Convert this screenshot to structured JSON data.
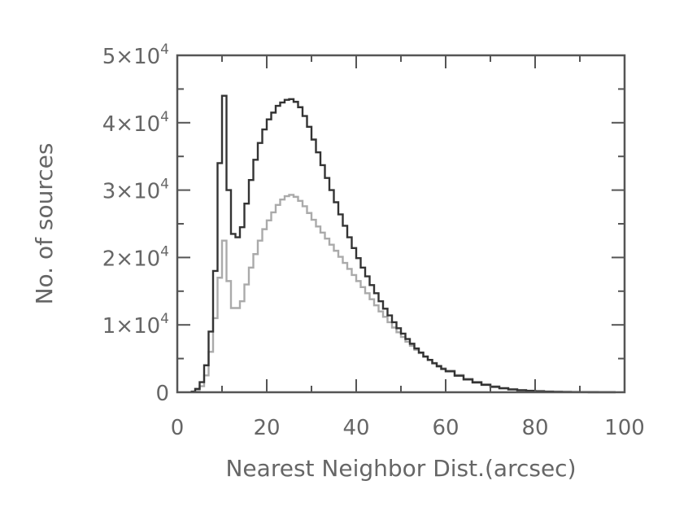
{
  "chart_data": {
    "type": "line",
    "title": "",
    "xlabel": "Nearest Neighbor Dist.(arcsec)",
    "ylabel": "No. of sources",
    "xlim": [
      0,
      100
    ],
    "ylim": [
      0,
      50000
    ],
    "grid": false,
    "x_ticks": [
      {
        "value": 0,
        "label": "0"
      },
      {
        "value": 20,
        "label": "20"
      },
      {
        "value": 40,
        "label": "40"
      },
      {
        "value": 60,
        "label": "60"
      },
      {
        "value": 80,
        "label": "80"
      },
      {
        "value": 100,
        "label": "100"
      }
    ],
    "y_ticks": [
      {
        "value": 0,
        "label": "0",
        "mantissa": "0",
        "exponent": ""
      },
      {
        "value": 10000,
        "label": "1×10⁴",
        "mantissa": "1×10",
        "exponent": "4"
      },
      {
        "value": 20000,
        "label": "2×10⁴",
        "mantissa": "2×10",
        "exponent": "4"
      },
      {
        "value": 30000,
        "label": "3×10⁴",
        "mantissa": "3×10",
        "exponent": "4"
      },
      {
        "value": 40000,
        "label": "4×10⁴",
        "mantissa": "4×10",
        "exponent": "4"
      },
      {
        "value": 50000,
        "label": "5×10⁴",
        "mantissa": "5×10",
        "exponent": "4"
      }
    ],
    "series": [
      {
        "color": "#333333",
        "step": "histogram",
        "x": [
          3,
          4,
          5,
          6,
          7,
          8,
          9,
          10,
          11,
          12,
          13,
          14,
          15,
          16,
          17,
          18,
          19,
          20,
          21,
          22,
          23,
          24,
          25,
          26,
          27,
          28,
          29,
          30,
          31,
          32,
          33,
          34,
          35,
          36,
          37,
          38,
          39,
          40,
          41,
          42,
          43,
          44,
          45,
          46,
          47,
          48,
          49,
          50,
          51,
          52,
          53,
          54,
          55,
          56,
          57,
          58,
          59,
          60,
          62,
          64,
          66,
          68,
          70,
          72,
          74,
          76,
          78,
          80,
          82,
          84,
          86,
          88,
          90,
          92,
          94,
          96
        ],
        "values": [
          100,
          500,
          1500,
          4000,
          9000,
          18000,
          34000,
          44000,
          30000,
          23500,
          23000,
          24500,
          28000,
          31500,
          34500,
          37000,
          39000,
          40500,
          41500,
          42500,
          43000,
          43400,
          43500,
          43100,
          42300,
          41000,
          39400,
          37500,
          35600,
          33700,
          31800,
          30000,
          28200,
          26400,
          24700,
          23000,
          21400,
          19900,
          18500,
          17200,
          15900,
          14700,
          13500,
          12400,
          11400,
          10400,
          9500,
          8700,
          7900,
          7200,
          6500,
          5900,
          5300,
          4800,
          4300,
          3850,
          3450,
          3100,
          2450,
          1900,
          1450,
          1100,
          800,
          580,
          420,
          300,
          210,
          150,
          100,
          70,
          50,
          30,
          20,
          15,
          10,
          5
        ]
      },
      {
        "color": "#aaaaaa",
        "step": "histogram",
        "x": [
          3,
          4,
          5,
          6,
          7,
          8,
          9,
          10,
          11,
          12,
          13,
          14,
          15,
          16,
          17,
          18,
          19,
          20,
          21,
          22,
          23,
          24,
          25,
          26,
          27,
          28,
          29,
          30,
          31,
          32,
          33,
          34,
          35,
          36,
          37,
          38,
          39,
          40,
          41,
          42,
          43,
          44,
          45,
          46,
          47,
          48,
          49,
          50,
          51,
          52,
          53,
          54,
          55,
          56,
          57,
          58,
          59,
          60,
          62,
          64,
          66,
          68,
          70,
          72,
          74,
          76,
          78,
          80,
          82,
          84,
          86,
          88,
          90,
          92,
          94,
          96
        ],
        "values": [
          50,
          300,
          900,
          2500,
          6000,
          11000,
          17000,
          22500,
          16500,
          12500,
          12500,
          13500,
          16000,
          18500,
          20500,
          22500,
          24200,
          25500,
          26700,
          27800,
          28600,
          29100,
          29300,
          29000,
          28400,
          27600,
          26600,
          25600,
          24600,
          23700,
          22800,
          21900,
          21000,
          20100,
          19200,
          18300,
          17400,
          16500,
          15600,
          14700,
          13800,
          12900,
          12000,
          11200,
          10400,
          9600,
          8900,
          8200,
          7500,
          6900,
          6300,
          5800,
          5300,
          4800,
          4350,
          3950,
          3550,
          3200,
          2550,
          2000,
          1550,
          1180,
          880,
          650,
          470,
          340,
          240,
          170,
          115,
          80,
          55,
          35,
          22,
          15,
          10,
          5
        ]
      }
    ]
  }
}
